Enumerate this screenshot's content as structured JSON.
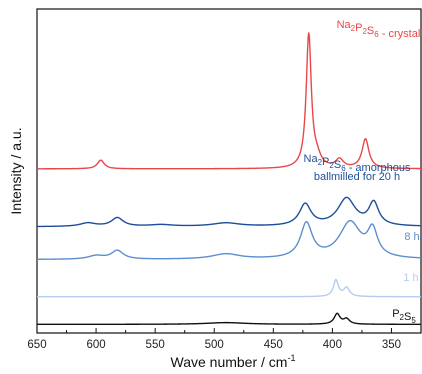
{
  "chart_data": {
    "type": "line",
    "title": "",
    "xlabel": "Wave number / cm",
    "xlabel_sup": "-1",
    "ylabel": "Intensity / a.u.",
    "xlim": [
      650,
      325
    ],
    "x_reversed": true,
    "x_ticks": [
      650,
      600,
      550,
      500,
      450,
      400,
      350
    ],
    "y_ticks_shown": false,
    "series": [
      {
        "id": "crystalline",
        "color": "#e8474a",
        "label_parts": [
          [
            "Na",
            ""
          ],
          [
            "2",
            "sub"
          ],
          [
            "P",
            ""
          ],
          [
            "2",
            "sub"
          ],
          [
            "S",
            ""
          ],
          [
            "6",
            "sub"
          ],
          [
            " - crystalline",
            ""
          ]
        ],
        "baseline": 0.9,
        "peaks": [
          [
            596,
            0.1,
            3.5
          ],
          [
            420,
            1.55,
            2.6
          ],
          [
            413,
            0.1,
            4
          ],
          [
            394,
            0.1,
            4
          ],
          [
            372,
            0.34,
            3.5
          ]
        ]
      },
      {
        "id": "amorphous-20h",
        "color": "#1f4e99",
        "label_parts": [
          [
            "Na",
            ""
          ],
          [
            "2",
            "sub"
          ],
          [
            "P",
            ""
          ],
          [
            "2",
            "sub"
          ],
          [
            "S",
            ""
          ],
          [
            "6",
            "sub"
          ],
          [
            " - amorphous",
            ""
          ]
        ],
        "label_line2": "ballmilled for 20 h",
        "baseline": 0.23,
        "peaks": [
          [
            607,
            0.04,
            8
          ],
          [
            582,
            0.1,
            6
          ],
          [
            545,
            0.02,
            12
          ],
          [
            490,
            0.04,
            14
          ],
          [
            423,
            0.25,
            6
          ],
          [
            388,
            0.32,
            9
          ],
          [
            365,
            0.26,
            5
          ]
        ]
      },
      {
        "id": "8h",
        "color": "#5b8fcf",
        "label": "8 h",
        "baseline": -0.15,
        "peaks": [
          [
            600,
            0.04,
            8
          ],
          [
            582,
            0.1,
            6
          ],
          [
            490,
            0.06,
            14
          ],
          [
            422,
            0.4,
            6
          ],
          [
            385,
            0.42,
            11
          ],
          [
            366,
            0.3,
            5
          ]
        ]
      },
      {
        "id": "1h",
        "color": "#b5cdee",
        "label": "1 h",
        "baseline": -0.58,
        "peaks": [
          [
            397,
            0.19,
            2.5
          ],
          [
            388,
            0.1,
            3
          ]
        ]
      },
      {
        "id": "P2S5",
        "color": "#111111",
        "label_parts": [
          [
            "P",
            ""
          ],
          [
            "2",
            "sub"
          ],
          [
            "S",
            ""
          ],
          [
            "5",
            "sub"
          ]
        ],
        "baseline": -0.9,
        "peaks": [
          [
            490,
            0.02,
            20
          ],
          [
            396,
            0.12,
            3
          ],
          [
            388,
            0.06,
            3
          ]
        ]
      }
    ]
  }
}
